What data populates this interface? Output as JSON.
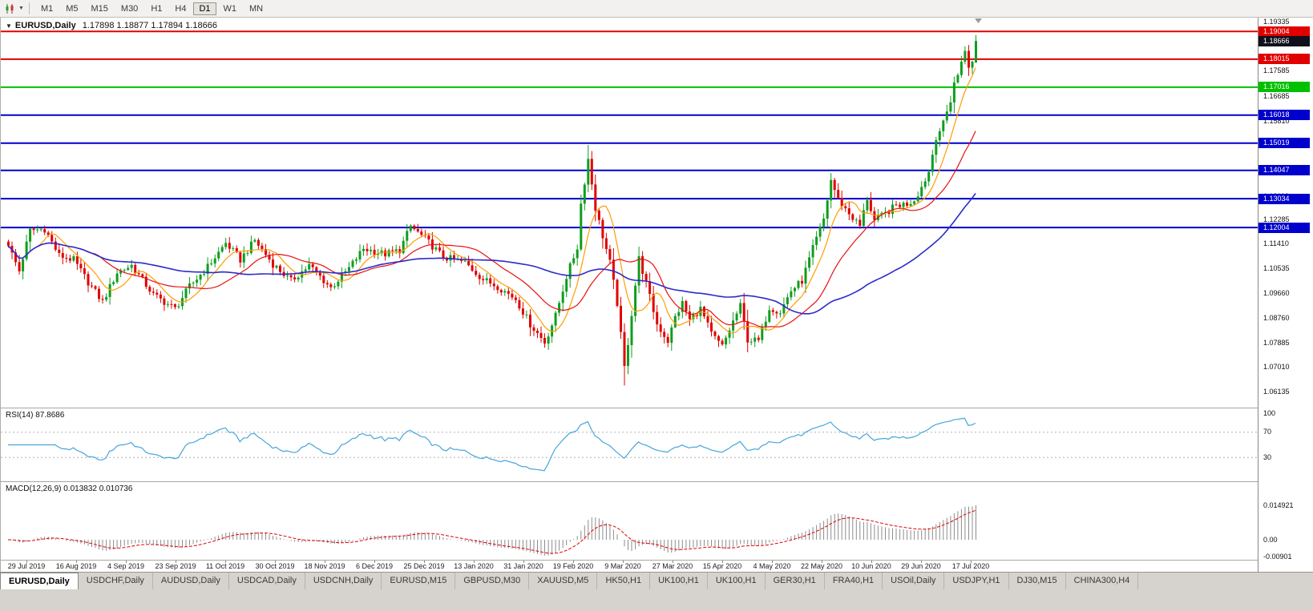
{
  "toolbar": {
    "chart_icon": "candlestick-chart-icon",
    "dropdown_icon": "chevron-down-icon",
    "timeframes": [
      "M1",
      "M5",
      "M15",
      "M30",
      "H1",
      "H4",
      "D1",
      "W1",
      "MN"
    ],
    "active_timeframe": "D1"
  },
  "chart_header": {
    "symbol": "EURUSD,Daily",
    "ohlc": "1.17898 1.18877 1.17894 1.18666"
  },
  "price_axis": {
    "ticks": [
      "1.19335",
      "1.17585",
      "1.16685",
      "1.15810",
      "1.14910",
      "1.13110",
      "1.12285",
      "1.11410",
      "1.10535",
      "1.09660",
      "1.08760",
      "1.07885",
      "1.07010",
      "1.06135"
    ],
    "current_price": {
      "value": "1.18666",
      "bg": "#10101c"
    }
  },
  "rsi": {
    "label": "RSI(14) 87.8686",
    "axis_labels": [
      "100",
      "70",
      "30"
    ]
  },
  "macd": {
    "label": "MACD(12,26,9) 0.013832 0.010736",
    "axis_labels": [
      "0.014921",
      "0.00",
      "-0.00901"
    ]
  },
  "tabs": {
    "items": [
      "EURUSD,Daily",
      "USDCHF,Daily",
      "AUDUSD,Daily",
      "USDCAD,Daily",
      "USDCNH,Daily",
      "EURUSD,M15",
      "GBPUSD,M30",
      "XAUUSD,M5",
      "HK50,H1",
      "UK100,H1",
      "UK100,H1",
      "GER30,H1",
      "FRA40,H1",
      "USOil,Daily",
      "USDJPY,H1",
      "DJ30,M15",
      "CHINA300,H4"
    ],
    "active": "EURUSD,Daily"
  },
  "chart_data": {
    "type": "candlestick",
    "symbol": "EURUSD",
    "timeframe": "Daily",
    "title": "EURUSD,Daily",
    "y_range": [
      1.056,
      1.195
    ],
    "num_candles": 268,
    "up_color": "#0f9d1f",
    "down_color": "#e00000",
    "x_labels": [
      "29 Jul 2019",
      "16 Aug 2019",
      "4 Sep 2019",
      "23 Sep 2019",
      "11 Oct 2019",
      "30 Oct 2019",
      "18 Nov 2019",
      "6 Dec 2019",
      "25 Dec 2019",
      "13 Jan 2020",
      "31 Jan 2020",
      "19 Feb 2020",
      "9 Mar 2020",
      "27 Mar 2020",
      "15 Apr 2020",
      "4 May 2020",
      "22 May 2020",
      "10 Jun 2020",
      "29 Jun 2020",
      "17 Jul 2020"
    ],
    "price_anchors": [
      [
        0,
        1.1135
      ],
      [
        3,
        1.1045
      ],
      [
        6,
        1.119
      ],
      [
        10,
        1.1195
      ],
      [
        14,
        1.11
      ],
      [
        18,
        1.1085
      ],
      [
        22,
        1.1005
      ],
      [
        26,
        1.0935
      ],
      [
        30,
        1.104
      ],
      [
        34,
        1.1065
      ],
      [
        40,
        1.096
      ],
      [
        46,
        1.091
      ],
      [
        50,
        1.099
      ],
      [
        55,
        1.106
      ],
      [
        60,
        1.1145
      ],
      [
        64,
        1.1085
      ],
      [
        68,
        1.1155
      ],
      [
        73,
        1.107
      ],
      [
        78,
        1.101
      ],
      [
        83,
        1.1065
      ],
      [
        89,
        1.0985
      ],
      [
        94,
        1.1055
      ],
      [
        98,
        1.1125
      ],
      [
        104,
        1.1105
      ],
      [
        108,
        1.112
      ],
      [
        111,
        1.1205
      ],
      [
        115,
        1.116
      ],
      [
        120,
        1.1095
      ],
      [
        126,
        1.1075
      ],
      [
        131,
        1.1015
      ],
      [
        135,
        1.099
      ],
      [
        140,
        1.0945
      ],
      [
        144,
        1.0855
      ],
      [
        148,
        1.079
      ],
      [
        151,
        1.0885
      ],
      [
        154,
        1.1025
      ],
      [
        157,
        1.113
      ],
      [
        158,
        1.1285
      ],
      [
        160,
        1.1445
      ],
      [
        162,
        1.127
      ],
      [
        164,
        1.117
      ],
      [
        166,
        1.1075
      ],
      [
        168,
        1.093
      ],
      [
        170,
        1.07
      ],
      [
        171,
        1.079
      ],
      [
        173,
        1.0995
      ],
      [
        174,
        1.109
      ],
      [
        176,
        1.1
      ],
      [
        179,
        1.0855
      ],
      [
        182,
        1.0795
      ],
      [
        184,
        1.088
      ],
      [
        186,
        1.093
      ],
      [
        188,
        1.087
      ],
      [
        191,
        1.091
      ],
      [
        194,
        1.082
      ],
      [
        197,
        1.0775
      ],
      [
        200,
        1.0865
      ],
      [
        202,
        1.092
      ],
      [
        204,
        1.08
      ],
      [
        207,
        1.0795
      ],
      [
        210,
        1.0915
      ],
      [
        213,
        1.09
      ],
      [
        216,
        1.0975
      ],
      [
        219,
        1.101
      ],
      [
        222,
        1.1125
      ],
      [
        225,
        1.123
      ],
      [
        227,
        1.137
      ],
      [
        229,
        1.13
      ],
      [
        232,
        1.125
      ],
      [
        235,
        1.1205
      ],
      [
        237,
        1.1305
      ],
      [
        239,
        1.1225
      ],
      [
        242,
        1.125
      ],
      [
        245,
        1.128
      ],
      [
        248,
        1.1285
      ],
      [
        250,
        1.13
      ],
      [
        252,
        1.1345
      ],
      [
        254,
        1.14
      ],
      [
        256,
        1.1525
      ],
      [
        258,
        1.157
      ],
      [
        260,
        1.1655
      ],
      [
        261,
        1.172
      ],
      [
        262,
        1.174
      ],
      [
        263,
        1.1795
      ],
      [
        264,
        1.184
      ],
      [
        265,
        1.1765
      ],
      [
        266,
        1.179
      ],
      [
        267,
        1.18666
      ]
    ],
    "key_extremes": [
      [
        160,
        "high",
        1.1495
      ],
      [
        170,
        "low",
        1.0636
      ]
    ],
    "last_candle": {
      "open": 1.17898,
      "high": 1.18877,
      "low": 1.17894,
      "close": 1.18666
    },
    "moving_averages": [
      {
        "period": 8,
        "color": "#ff9d00",
        "name": "fast"
      },
      {
        "period": 21,
        "color": "#e81010",
        "name": "medium"
      },
      {
        "period": 55,
        "color": "#2b2bcc",
        "name": "slow"
      }
    ],
    "horizontal_levels": [
      {
        "price": 1.19004,
        "label": "1.19004",
        "color": "#e00000"
      },
      {
        "price": 1.18015,
        "label": "1.18015",
        "color": "#e00000"
      },
      {
        "price": 1.17016,
        "label": "1.17016",
        "color": "#00c000"
      },
      {
        "price": 1.16018,
        "label": "1.16018",
        "color": "#0000cd"
      },
      {
        "price": 1.15019,
        "label": "1.15019",
        "color": "#0000cd"
      },
      {
        "price": 1.14047,
        "label": "1.14047",
        "color": "#0000cd"
      },
      {
        "price": 1.13034,
        "label": "1.13034",
        "color": "#0000cd"
      },
      {
        "price": 1.12004,
        "label": "1.12004",
        "color": "#0000cd"
      }
    ],
    "indicators": {
      "rsi": {
        "period": 14,
        "current": 87.8686,
        "color": "#46a5dd",
        "levels": [
          70,
          30
        ]
      },
      "macd": {
        "fast": 12,
        "slow": 26,
        "signal_period": 9,
        "macd": 0.013832,
        "signal": 0.010736,
        "hist_color": "#8c8c8c",
        "signal_color": "#e00000",
        "axis_max": 0.014921,
        "axis_min": -0.00901
      }
    }
  }
}
